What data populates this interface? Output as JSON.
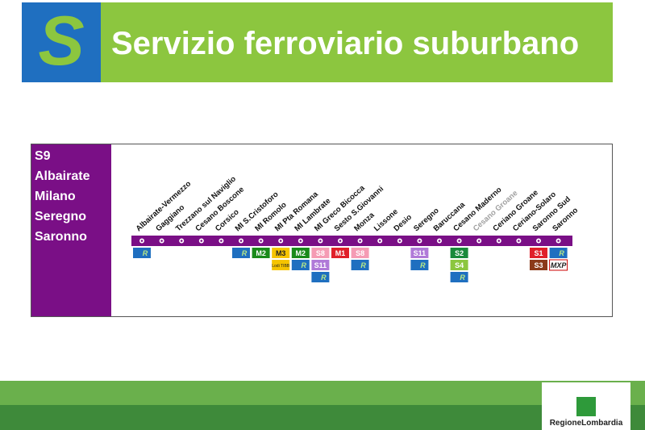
{
  "header": {
    "logo": "S",
    "title": "Servizio ferroviario suburbano"
  },
  "line": {
    "name": "S9",
    "route": [
      "Albairate",
      "Milano",
      "Seregno",
      "Saronno"
    ],
    "stations": [
      {
        "name": "Albairate-Vermezzo",
        "badges": [
          {
            "label": "R",
            "color": "#1f6fc0"
          }
        ]
      },
      {
        "name": "Gaggiano",
        "badges": []
      },
      {
        "name": "Trezzano sul Naviglio",
        "badges": []
      },
      {
        "name": "Cesano Boscone",
        "badges": []
      },
      {
        "name": "Corsico",
        "badges": []
      },
      {
        "name": "MI S.Cristoforo",
        "badges": [
          {
            "label": "R",
            "color": "#1f6fc0"
          }
        ]
      },
      {
        "name": "MI Romolo",
        "badges": [
          {
            "label": "M2",
            "color": "#1a8a1a"
          }
        ]
      },
      {
        "name": "MI Pta Romana",
        "badges": [
          {
            "label": "M3",
            "color": "#f5c400"
          }
        ],
        "note": "Lodi TIBB"
      },
      {
        "name": "MI Lambrate",
        "badges": [
          {
            "label": "M2",
            "color": "#1a8a1a"
          },
          {
            "label": "R",
            "color": "#1f6fc0"
          }
        ]
      },
      {
        "name": "MI Greco Bicocca",
        "badges": [
          {
            "label": "S8",
            "color": "#f59bb4"
          },
          {
            "label": "S11",
            "color": "#b07ad8"
          },
          {
            "label": "R",
            "color": "#1f6fc0"
          }
        ]
      },
      {
        "name": "Sesto S.Giovanni",
        "badges": [
          {
            "label": "M1",
            "color": "#e0202a"
          }
        ]
      },
      {
        "name": "Monza",
        "badges": [
          {
            "label": "S8",
            "color": "#f59bb4"
          },
          {
            "label": "R",
            "color": "#1f6fc0"
          }
        ]
      },
      {
        "name": "Lissone",
        "badges": []
      },
      {
        "name": "Desio",
        "badges": []
      },
      {
        "name": "Seregno",
        "badges": [
          {
            "label": "S11",
            "color": "#b07ad8"
          },
          {
            "label": "R",
            "color": "#1f6fc0"
          }
        ]
      },
      {
        "name": "Baruccana",
        "badges": []
      },
      {
        "name": "Cesano Maderno",
        "badges": [
          {
            "label": "S2",
            "color": "#1a8a3a"
          },
          {
            "label": "S4",
            "color": "#8cc63f"
          },
          {
            "label": "R",
            "color": "#1f6fc0"
          }
        ]
      },
      {
        "name": "Cesano Groane",
        "label_color": "#a0a0a0",
        "badges": []
      },
      {
        "name": "Ceriano Groane",
        "badges": []
      },
      {
        "name": "Ceriano-Solaro",
        "badges": []
      },
      {
        "name": "Saronno Sud",
        "badges": [
          {
            "label": "S1",
            "color": "#e0202a"
          },
          {
            "label": "S3",
            "color": "#8b3a1a"
          }
        ]
      },
      {
        "name": "Saronno",
        "badges": [
          {
            "label": "R",
            "color": "#1f6fc0"
          },
          {
            "label": "MXP",
            "color": "#ffffff"
          }
        ]
      }
    ]
  },
  "footer": {
    "logo": "RegioneLombardia"
  }
}
